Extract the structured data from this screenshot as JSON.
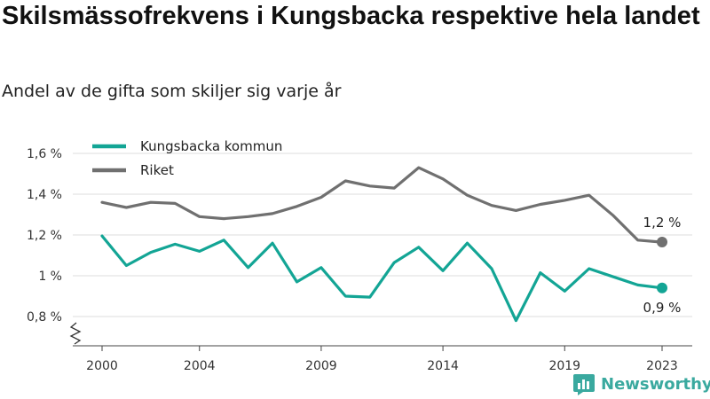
{
  "header": {
    "title": "Skilsmässofrekvens i Kungsbacka respektive hela landet",
    "subtitle": "Andel av de gifta som skiljer sig varje år"
  },
  "brand": {
    "name": "Newsworthy",
    "icon": "newsworthy-logo-icon",
    "color": "#3aa99f"
  },
  "chart_data": {
    "type": "line",
    "title": "Skilsmässofrekvens i Kungsbacka respektive hela landet",
    "subtitle": "Andel av de gifta som skiljer sig varje år",
    "x": [
      2000,
      2001,
      2002,
      2003,
      2004,
      2005,
      2006,
      2007,
      2008,
      2009,
      2010,
      2011,
      2012,
      2013,
      2014,
      2015,
      2016,
      2017,
      2018,
      2019,
      2020,
      2021,
      2022,
      2023
    ],
    "x_ticks": [
      2000,
      2004,
      2009,
      2014,
      2019,
      2023
    ],
    "y_ticks": [
      0.8,
      1.0,
      1.2,
      1.4,
      1.6
    ],
    "y_tick_labels": [
      "0,8 %",
      "1 %",
      "1,2 %",
      "1,4 %",
      "1,6 %"
    ],
    "ylim": [
      0.7,
      1.65
    ],
    "axis_break": true,
    "grid": "horizontal",
    "legend_position": "top-left",
    "series": [
      {
        "name": "Kungsbacka kommun",
        "color": "#13a595",
        "values": [
          1.195,
          1.05,
          1.115,
          1.155,
          1.12,
          1.175,
          1.04,
          1.16,
          0.97,
          1.04,
          0.9,
          0.895,
          1.065,
          1.14,
          1.025,
          1.16,
          1.035,
          0.78,
          1.015,
          0.925,
          1.035,
          0.995,
          0.955,
          0.94
        ],
        "end_label": "0,9 %"
      },
      {
        "name": "Riket",
        "color": "#707070",
        "values": [
          1.36,
          1.335,
          1.36,
          1.355,
          1.29,
          1.28,
          1.29,
          1.305,
          1.34,
          1.385,
          1.465,
          1.44,
          1.43,
          1.53,
          1.475,
          1.395,
          1.345,
          1.32,
          1.35,
          1.37,
          1.395,
          1.295,
          1.175,
          1.165
        ],
        "end_label": "1,2 %"
      }
    ]
  }
}
